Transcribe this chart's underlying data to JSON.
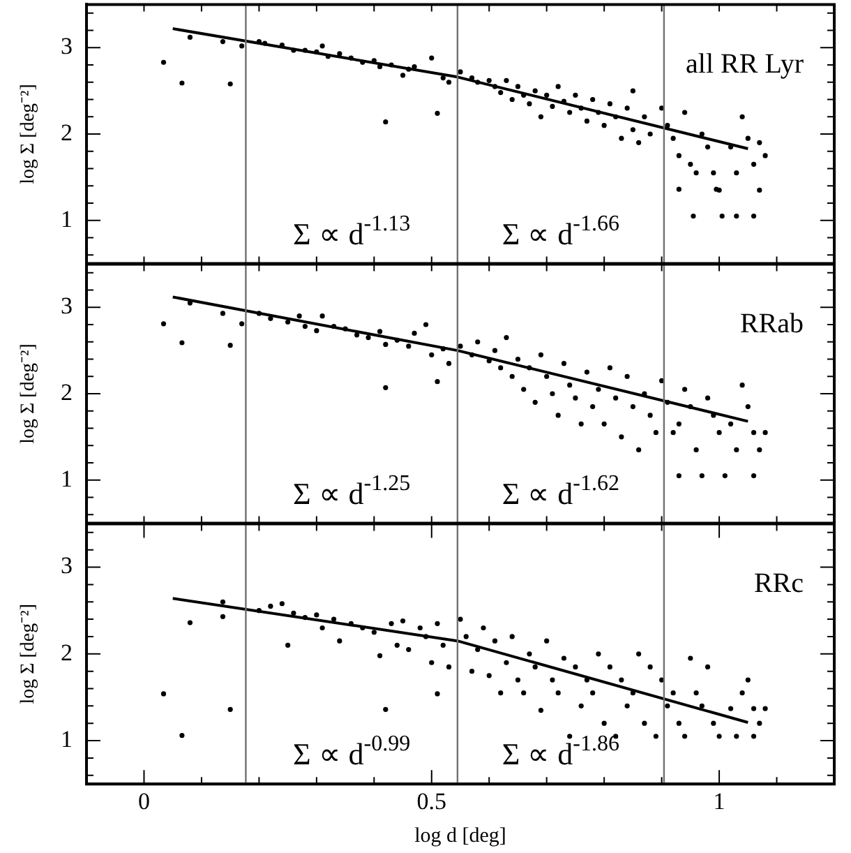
{
  "chart_data": [
    {
      "type": "scatter",
      "ylabel": "log Σ [deg⁻²]",
      "xlim": [
        -0.1,
        1.2
      ],
      "ylim": [
        0.5,
        3.5
      ],
      "grid": false,
      "legend": false,
      "marker": "circle",
      "tick_labels": "y",
      "xticks": [
        {
          "value": 0,
          "label": null
        },
        {
          "value": 0.1,
          "label": null
        },
        {
          "value": 0.2,
          "label": null
        },
        {
          "value": 0.3,
          "label": null
        },
        {
          "value": 0.4,
          "label": null
        },
        {
          "value": 0.5,
          "label": null
        },
        {
          "value": 0.6,
          "label": null
        },
        {
          "value": 0.7,
          "label": null
        },
        {
          "value": 0.8,
          "label": null
        },
        {
          "value": 0.9,
          "label": null
        },
        {
          "value": 1,
          "label": null
        },
        {
          "value": 1.1,
          "label": null
        }
      ],
      "yticks": [
        {
          "value": 0.6,
          "label": null
        },
        {
          "value": 0.8,
          "label": null
        },
        1,
        {
          "value": 1.2,
          "label": null
        },
        {
          "value": 1.4,
          "label": null
        },
        {
          "value": 1.6,
          "label": null
        },
        {
          "value": 1.8,
          "label": null
        },
        2,
        {
          "value": 2.2,
          "label": null
        },
        {
          "value": 2.4,
          "label": null
        },
        {
          "value": 2.6,
          "label": null
        },
        {
          "value": 2.8,
          "label": null
        },
        3,
        {
          "value": 3.2,
          "label": null
        },
        {
          "value": 3.4,
          "label": null
        }
      ],
      "ref_lines": [
        {
          "axis": "x",
          "value": 0.177,
          "color": "#707070"
        },
        {
          "axis": "x",
          "value": 0.545,
          "color": "#707070"
        },
        {
          "axis": "x",
          "value": 0.904,
          "color": "#707070"
        }
      ],
      "annotations": [
        "all RR Lyr",
        "Σ ∝ d$^{-1.13}$",
        "Σ ∝ d$^{-1.66}$"
      ],
      "series": [
        {
          "color": "#000000",
          "x": [
            0.034,
            0.066,
            0.15,
            0.08,
            0.137,
            0.17,
            0.42,
            0.51,
            0.2,
            0.21,
            0.24,
            0.26,
            0.28,
            0.3,
            0.31,
            0.32,
            0.34,
            0.36,
            0.38,
            0.4,
            0.41,
            0.43,
            0.45,
            0.46,
            0.47,
            0.5,
            0.52,
            0.53,
            0.55,
            0.57,
            0.58,
            0.6,
            0.61,
            0.62,
            0.63,
            0.64,
            0.65,
            0.66,
            0.67,
            0.68,
            0.69,
            0.7,
            0.71,
            0.72,
            0.73,
            0.74,
            0.75,
            0.76,
            0.77,
            0.78,
            0.79,
            0.8,
            0.81,
            0.82,
            0.83,
            0.84,
            0.85,
            0.85,
            0.86,
            0.87,
            0.88,
            0.9,
            0.91,
            0.92,
            0.93,
            0.93,
            0.94,
            0.95,
            0.955,
            0.96,
            0.97,
            0.98,
            0.99,
            0.995,
            1.0,
            1.005,
            1.02,
            1.03,
            1.03,
            1.04,
            1.05,
            1.06,
            1.06,
            1.07,
            1.07,
            1.08
          ],
          "values": [
            2.83,
            2.59,
            2.58,
            3.12,
            3.07,
            3.02,
            2.14,
            2.24,
            3.07,
            3.05,
            3.03,
            2.97,
            2.97,
            2.95,
            3.02,
            2.9,
            2.93,
            2.88,
            2.83,
            2.85,
            2.78,
            2.8,
            2.68,
            2.75,
            2.78,
            2.88,
            2.65,
            2.6,
            2.72,
            2.65,
            2.6,
            2.62,
            2.55,
            2.48,
            2.62,
            2.4,
            2.55,
            2.45,
            2.35,
            2.5,
            2.2,
            2.45,
            2.32,
            2.55,
            2.38,
            2.25,
            2.45,
            2.3,
            2.15,
            2.4,
            2.25,
            2.1,
            2.35,
            2.2,
            1.95,
            2.3,
            2.05,
            2.5,
            1.9,
            2.2,
            2.0,
            2.3,
            2.1,
            1.95,
            1.75,
            1.36,
            2.25,
            1.65,
            1.05,
            1.55,
            2.0,
            1.85,
            1.55,
            1.36,
            1.35,
            1.05,
            1.85,
            1.55,
            1.05,
            2.2,
            1.95,
            1.65,
            1.05,
            1.9,
            1.35,
            1.75
          ]
        },
        {
          "type": "line",
          "marker": "none",
          "color": "#000000",
          "x": [
            0.05,
            0.545,
            1.05
          ],
          "values": [
            3.22,
            2.66,
            1.83
          ]
        }
      ]
    },
    {
      "type": "scatter",
      "ylabel": "log Σ [deg⁻²]",
      "xlim": [
        -0.1,
        1.2
      ],
      "ylim": [
        0.5,
        3.5
      ],
      "grid": false,
      "legend": false,
      "marker": "circle",
      "tick_labels": "y",
      "xticks": [
        {
          "value": 0,
          "label": null
        },
        {
          "value": 0.1,
          "label": null
        },
        {
          "value": 0.2,
          "label": null
        },
        {
          "value": 0.3,
          "label": null
        },
        {
          "value": 0.4,
          "label": null
        },
        {
          "value": 0.5,
          "label": null
        },
        {
          "value": 0.6,
          "label": null
        },
        {
          "value": 0.7,
          "label": null
        },
        {
          "value": 0.8,
          "label": null
        },
        {
          "value": 0.9,
          "label": null
        },
        {
          "value": 1,
          "label": null
        },
        {
          "value": 1.1,
          "label": null
        }
      ],
      "yticks": [
        {
          "value": 0.6,
          "label": null
        },
        {
          "value": 0.8,
          "label": null
        },
        1,
        {
          "value": 1.2,
          "label": null
        },
        {
          "value": 1.4,
          "label": null
        },
        {
          "value": 1.6,
          "label": null
        },
        {
          "value": 1.8,
          "label": null
        },
        2,
        {
          "value": 2.2,
          "label": null
        },
        {
          "value": 2.4,
          "label": null
        },
        {
          "value": 2.6,
          "label": null
        },
        {
          "value": 2.8,
          "label": null
        },
        3,
        {
          "value": 3.2,
          "label": null
        },
        {
          "value": 3.4,
          "label": null
        }
      ],
      "ref_lines": [
        {
          "axis": "x",
          "value": 0.177,
          "color": "#707070"
        },
        {
          "axis": "x",
          "value": 0.545,
          "color": "#707070"
        },
        {
          "axis": "x",
          "value": 0.904,
          "color": "#707070"
        }
      ],
      "annotations": [
        "RRab",
        "Σ ∝ d$^{-1.25}$",
        "Σ ∝ d$^{-1.62}$"
      ],
      "series": [
        {
          "color": "#000000",
          "x": [
            0.034,
            0.066,
            0.15,
            0.08,
            0.137,
            0.17,
            0.42,
            0.51,
            0.2,
            0.22,
            0.25,
            0.27,
            0.28,
            0.3,
            0.31,
            0.33,
            0.35,
            0.37,
            0.39,
            0.41,
            0.42,
            0.44,
            0.46,
            0.47,
            0.49,
            0.5,
            0.52,
            0.53,
            0.55,
            0.57,
            0.58,
            0.6,
            0.61,
            0.62,
            0.63,
            0.64,
            0.65,
            0.66,
            0.67,
            0.68,
            0.69,
            0.7,
            0.71,
            0.72,
            0.73,
            0.74,
            0.75,
            0.76,
            0.77,
            0.78,
            0.79,
            0.8,
            0.81,
            0.82,
            0.83,
            0.84,
            0.85,
            0.86,
            0.87,
            0.88,
            0.89,
            0.9,
            0.91,
            0.92,
            0.93,
            0.93,
            0.94,
            0.95,
            0.96,
            0.97,
            0.98,
            0.99,
            1.0,
            1.01,
            1.02,
            1.03,
            1.04,
            1.05,
            1.06,
            1.06,
            1.07,
            1.08
          ],
          "values": [
            2.81,
            2.59,
            2.56,
            3.05,
            2.93,
            2.81,
            2.07,
            2.14,
            2.93,
            2.87,
            2.83,
            2.9,
            2.78,
            2.73,
            2.9,
            2.78,
            2.75,
            2.68,
            2.65,
            2.72,
            2.57,
            2.62,
            2.55,
            2.7,
            2.8,
            2.45,
            2.52,
            2.35,
            2.55,
            2.45,
            2.6,
            2.38,
            2.5,
            2.3,
            2.65,
            2.2,
            2.4,
            2.05,
            2.3,
            1.9,
            2.45,
            2.2,
            2.0,
            1.75,
            2.35,
            2.1,
            1.95,
            1.65,
            2.25,
            1.85,
            2.05,
            1.65,
            2.3,
            1.95,
            1.5,
            2.2,
            1.85,
            1.35,
            2.0,
            1.75,
            1.55,
            2.15,
            1.9,
            1.55,
            1.65,
            1.05,
            2.05,
            1.85,
            1.35,
            1.05,
            1.95,
            1.75,
            1.55,
            1.05,
            1.65,
            1.35,
            2.1,
            1.85,
            1.55,
            1.05,
            1.35,
            1.55
          ]
        },
        {
          "type": "line",
          "marker": "none",
          "color": "#000000",
          "x": [
            0.05,
            0.545,
            1.05
          ],
          "values": [
            3.12,
            2.5,
            1.68
          ]
        }
      ]
    },
    {
      "type": "scatter",
      "xlabel": "log d [deg]",
      "ylabel": "log Σ [deg⁻²]",
      "xlim": [
        -0.1,
        1.2
      ],
      "ylim": [
        0.5,
        3.5
      ],
      "grid": false,
      "legend": false,
      "marker": "circle",
      "xticks": [
        0,
        {
          "value": 0.1,
          "label": null
        },
        {
          "value": 0.2,
          "label": null
        },
        {
          "value": 0.3,
          "label": null
        },
        {
          "value": 0.4,
          "label": null
        },
        0.5,
        {
          "value": 0.6,
          "label": null
        },
        {
          "value": 0.7,
          "label": null
        },
        {
          "value": 0.8,
          "label": null
        },
        {
          "value": 0.9,
          "label": null
        },
        1,
        {
          "value": 1.1,
          "label": null
        }
      ],
      "yticks": [
        {
          "value": 0.6,
          "label": null
        },
        {
          "value": 0.8,
          "label": null
        },
        1,
        {
          "value": 1.2,
          "label": null
        },
        {
          "value": 1.4,
          "label": null
        },
        {
          "value": 1.6,
          "label": null
        },
        {
          "value": 1.8,
          "label": null
        },
        2,
        {
          "value": 2.2,
          "label": null
        },
        {
          "value": 2.4,
          "label": null
        },
        {
          "value": 2.6,
          "label": null
        },
        {
          "value": 2.8,
          "label": null
        },
        3,
        {
          "value": 3.2,
          "label": null
        },
        {
          "value": 3.4,
          "label": null
        }
      ],
      "ref_lines": [
        {
          "axis": "x",
          "value": 0.177,
          "color": "#707070"
        },
        {
          "axis": "x",
          "value": 0.545,
          "color": "#707070"
        },
        {
          "axis": "x",
          "value": 0.904,
          "color": "#707070"
        }
      ],
      "annotations": [
        "RRc",
        "Σ ∝ d$^{-0.99}$",
        "Σ ∝ d$^{-1.86}$"
      ],
      "series": [
        {
          "color": "#000000",
          "x": [
            0.034,
            0.066,
            0.08,
            0.137,
            0.137,
            0.15,
            0.25,
            0.42,
            0.51,
            0.2,
            0.22,
            0.24,
            0.26,
            0.28,
            0.3,
            0.31,
            0.33,
            0.34,
            0.36,
            0.38,
            0.4,
            0.41,
            0.43,
            0.44,
            0.45,
            0.46,
            0.48,
            0.49,
            0.5,
            0.51,
            0.52,
            0.53,
            0.55,
            0.56,
            0.57,
            0.58,
            0.59,
            0.6,
            0.61,
            0.62,
            0.63,
            0.64,
            0.65,
            0.66,
            0.67,
            0.68,
            0.69,
            0.7,
            0.71,
            0.72,
            0.73,
            0.74,
            0.75,
            0.76,
            0.77,
            0.78,
            0.79,
            0.8,
            0.81,
            0.82,
            0.83,
            0.84,
            0.85,
            0.86,
            0.87,
            0.88,
            0.89,
            0.9,
            0.91,
            0.92,
            0.93,
            0.94,
            0.95,
            0.96,
            0.97,
            0.98,
            0.99,
            1.0,
            1.02,
            1.03,
            1.04,
            1.05,
            1.06,
            1.06,
            1.07,
            1.08
          ],
          "values": [
            1.54,
            1.06,
            2.36,
            2.6,
            2.43,
            1.36,
            2.1,
            1.36,
            1.54,
            2.5,
            2.55,
            2.58,
            2.47,
            2.42,
            2.45,
            2.3,
            2.4,
            2.15,
            2.35,
            2.3,
            2.25,
            1.98,
            2.35,
            2.1,
            2.38,
            2.05,
            2.3,
            2.2,
            1.9,
            2.35,
            2.1,
            1.85,
            2.4,
            2.2,
            1.8,
            2.05,
            2.3,
            1.75,
            2.15,
            1.55,
            1.9,
            2.2,
            1.7,
            1.55,
            2.0,
            1.85,
            1.35,
            2.15,
            1.7,
            1.55,
            1.95,
            1.05,
            1.85,
            1.4,
            1.7,
            1.55,
            2.0,
            1.2,
            1.85,
            1.05,
            1.7,
            1.4,
            1.55,
            2.0,
            1.2,
            1.85,
            1.05,
            1.7,
            1.4,
            1.55,
            1.2,
            1.05,
            1.95,
            1.55,
            1.4,
            1.85,
            1.2,
            1.05,
            1.37,
            1.05,
            1.55,
            1.7,
            1.37,
            1.05,
            1.2,
            1.37
          ]
        },
        {
          "type": "line",
          "marker": "none",
          "color": "#000000",
          "x": [
            0.05,
            0.545,
            1.05
          ],
          "values": [
            2.64,
            2.15,
            1.21
          ]
        }
      ]
    }
  ]
}
